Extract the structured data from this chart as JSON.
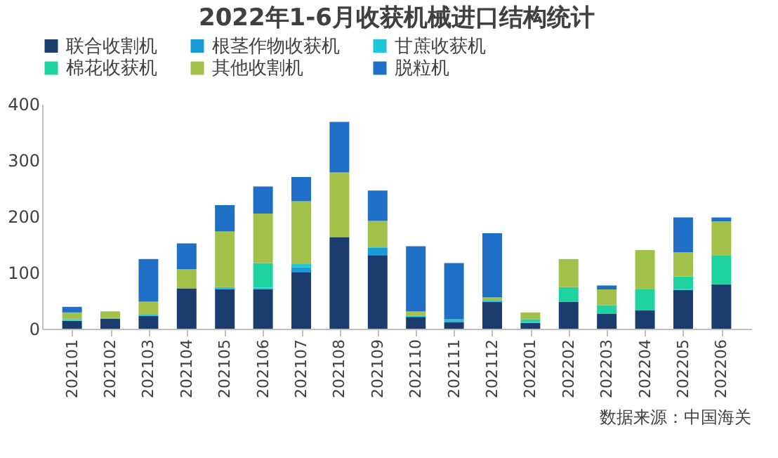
{
  "chart_data": {
    "type": "bar",
    "stacked": true,
    "title": "2022年1-6月收获机械进口结构统计",
    "categories": [
      "202101",
      "202102",
      "202103",
      "202104",
      "202105",
      "202106",
      "202107",
      "202108",
      "202109",
      "202110",
      "202111",
      "202112",
      "202201",
      "202202",
      "202203",
      "202204",
      "202205",
      "202206"
    ],
    "series": [
      {
        "name": "联合收割机",
        "color": "#1a3c6e",
        "values": [
          14,
          18,
          23,
          72,
          70,
          70,
          101,
          163,
          131,
          21,
          12,
          48,
          10,
          48,
          27,
          33,
          69,
          79
        ]
      },
      {
        "name": "根茎作物收获机",
        "color": "#1a9ad6",
        "values": [
          0,
          0,
          0,
          0,
          0,
          0,
          8,
          0,
          13,
          0,
          0,
          0,
          0,
          0,
          0,
          0,
          0,
          0
        ]
      },
      {
        "name": "甘蔗收获机",
        "color": "#20c4d8",
        "values": [
          2,
          1,
          3,
          0,
          4,
          3,
          7,
          0,
          2,
          2,
          5,
          3,
          2,
          0,
          0,
          0,
          2,
          0
        ]
      },
      {
        "name": "棉花收获机",
        "color": "#1ed3a0",
        "values": [
          1,
          0,
          0,
          0,
          0,
          44,
          0,
          0,
          0,
          0,
          0,
          0,
          5,
          26,
          15,
          37,
          22,
          51
        ]
      },
      {
        "name": "其他收割机",
        "color": "#a2c04a",
        "values": [
          12,
          12,
          22,
          34,
          99,
          88,
          111,
          115,
          46,
          8,
          0,
          5,
          12,
          50,
          28,
          70,
          43,
          61
        ]
      },
      {
        "name": "脱粒机",
        "color": "#1f6fc6",
        "values": [
          10,
          0,
          76,
          46,
          47,
          48,
          43,
          90,
          54,
          116,
          100,
          114,
          0,
          0,
          7,
          0,
          62,
          7
        ]
      }
    ],
    "ylim": [
      0,
      400
    ],
    "yticks": [
      0,
      100,
      200,
      300,
      400
    ],
    "grid": false,
    "legend": "top",
    "annotations": [
      "数据来源：中国海关"
    ]
  }
}
